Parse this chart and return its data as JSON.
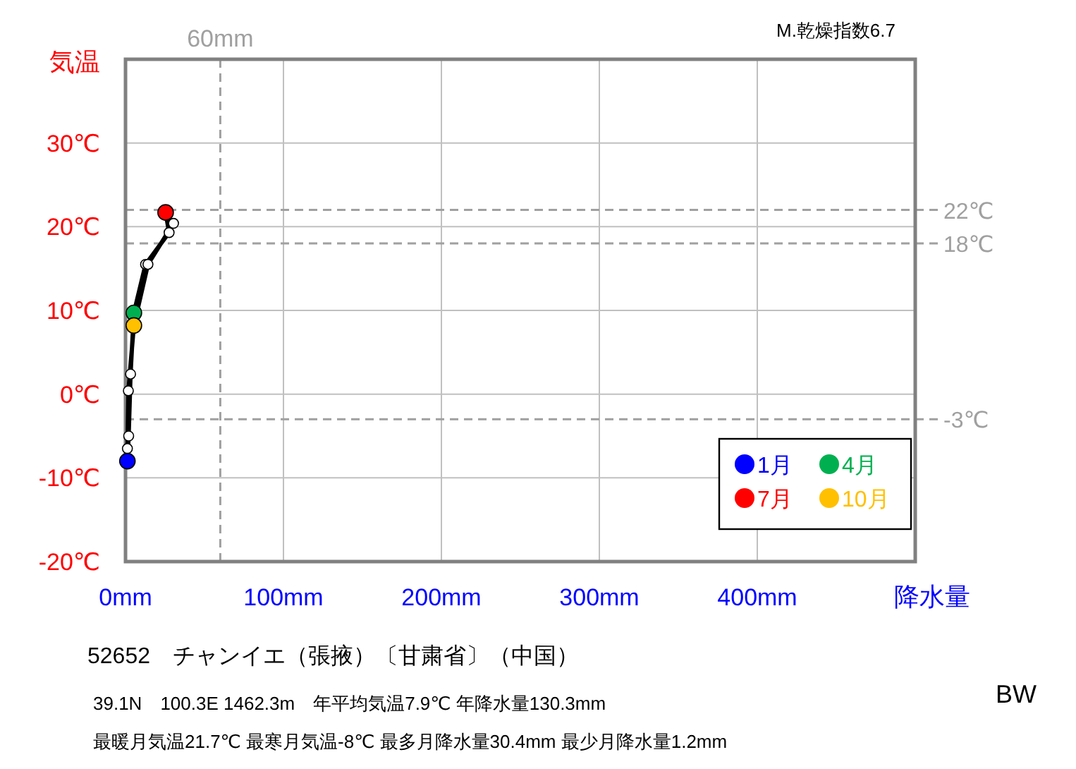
{
  "chart_data": {
    "type": "line",
    "ylabel": "気温",
    "xlabel": "降水量",
    "xlim": [
      0,
      500
    ],
    "ylim": [
      -20,
      40
    ],
    "xticks": [
      {
        "value": 0,
        "label": "0mm"
      },
      {
        "value": 100,
        "label": "100mm"
      },
      {
        "value": 200,
        "label": "200mm"
      },
      {
        "value": 300,
        "label": "300mm"
      },
      {
        "value": 400,
        "label": "400mm"
      },
      {
        "value": 500,
        "label": null
      }
    ],
    "yticks": [
      {
        "value": -20,
        "label": "-20℃"
      },
      {
        "value": -10,
        "label": "-10℃"
      },
      {
        "value": 0,
        "label": "0℃"
      },
      {
        "value": 10,
        "label": "10℃"
      },
      {
        "value": 20,
        "label": "20℃"
      },
      {
        "value": 30,
        "label": "30℃"
      },
      {
        "value": 40,
        "label": null
      }
    ],
    "grid": true,
    "marker": "circle",
    "line_style": "solid",
    "legend": "bottom right",
    "series": [
      {
        "color": "#000000",
        "x": [
          1.2,
          2,
          3.2,
          5.3,
          12.7,
          27.6,
          25.4,
          30.4,
          14.2,
          5.3,
          1.8,
          1.2
        ],
        "values": [
          -8,
          -5,
          2.4,
          9.7,
          15.5,
          19.3,
          21.7,
          20.4,
          15.5,
          8.2,
          0.4,
          -6.5
        ],
        "colors": [
          "#ffffff",
          "#ffffff",
          "#ffffff",
          "#ffffff",
          "#ffffff",
          "#ffffff",
          "#ffffff",
          "#ffffff",
          "#ffffff",
          "#ffffff",
          "#ffffff",
          "#ffffff"
        ]
      },
      {
        "type": "scatter",
        "name": "1月",
        "color": "#0000ff",
        "x": [
          1.2
        ],
        "values": [
          -8
        ]
      },
      {
        "type": "scatter",
        "name": "4月",
        "color": "#00b050",
        "x": [
          5.3
        ],
        "values": [
          9.7
        ]
      },
      {
        "type": "scatter",
        "name": "7月",
        "color": "#ff0000",
        "x": [
          25.4
        ],
        "values": [
          21.7
        ]
      },
      {
        "type": "scatter",
        "name": "10月",
        "color": "#ffc000",
        "x": [
          5.3
        ],
        "values": [
          8.2
        ]
      }
    ],
    "ref_lines": [
      {
        "axis": "y",
        "value": 22,
        "label": "22℃",
        "color": "#a0a0a0",
        "line_style": "dashed"
      },
      {
        "axis": "y",
        "value": 18,
        "label": "18℃",
        "color": "#a0a0a0",
        "line_style": "dashed"
      },
      {
        "axis": "y",
        "value": -3,
        "label": "-3℃",
        "color": "#a0a0a0",
        "line_style": "dashed"
      },
      {
        "axis": "x",
        "value": 60,
        "label": "60mm",
        "color": "#a0a0a0",
        "line_style": "dashed"
      }
    ],
    "annotations": [
      "M.乾燥指数6.7",
      "52652　チャンイエ（張掖）〔甘粛省〕（中国）",
      "39.1N　100.3E 1462.3m　年平均気温7.9℃ 年降水量130.3mm",
      "最暖月気温21.7℃ 最寒月気温-8℃ 最多月降水量30.4mm 最少月降水量1.2mm",
      "BW"
    ]
  }
}
